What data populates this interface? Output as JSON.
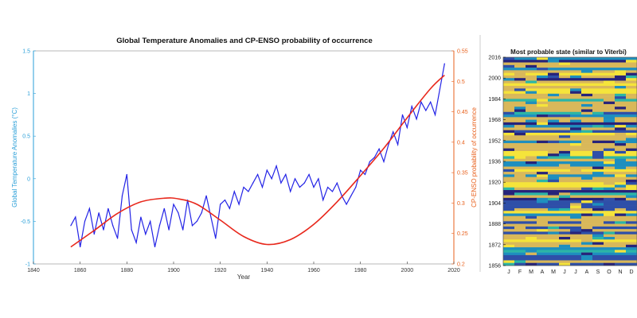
{
  "chart_data": [
    {
      "type": "line",
      "title": "Global Temperature Anomalies and CP-ENSO probability of occurrence",
      "xlabel": "Year",
      "ylabel": "Global Temperature Anomalies (°C)",
      "ylabel_right": "CP-ENSO probability of occurrence",
      "xlim": [
        1840,
        2020
      ],
      "xticks": [
        "1840",
        "1860",
        "1880",
        "1900",
        "1920",
        "1940",
        "1960",
        "1980",
        "2000",
        "2020"
      ],
      "ylim": [
        -1,
        1.5
      ],
      "yticks": [
        "-1",
        "-0.5",
        "0",
        "0.5",
        "1",
        "1.5"
      ],
      "ylim_right": [
        0.2,
        0.55
      ],
      "yticks_right": [
        "0.2",
        "0.25",
        "0.3",
        "0.35",
        "0.4",
        "0.45",
        "0.5",
        "0.55"
      ],
      "grid": false,
      "colors": {
        "temperature": "#2323e6",
        "probability": "#e8281c",
        "left_axis": "#2a9fd8",
        "right_axis": "#e8601c"
      },
      "series": [
        {
          "axis": "left",
          "x": [
            1856,
            1858,
            1860,
            1862,
            1864,
            1866,
            1868,
            1870,
            1872,
            1874,
            1876,
            1878,
            1880,
            1882,
            1884,
            1886,
            1888,
            1890,
            1892,
            1894,
            1896,
            1898,
            1900,
            1902,
            1904,
            1906,
            1908,
            1910,
            1912,
            1914,
            1916,
            1918,
            1920,
            1922,
            1924,
            1926,
            1928,
            1930,
            1932,
            1934,
            1936,
            1938,
            1940,
            1942,
            1944,
            1946,
            1948,
            1950,
            1952,
            1954,
            1956,
            1958,
            1960,
            1962,
            1964,
            1966,
            1968,
            1970,
            1972,
            1974,
            1976,
            1978,
            1980,
            1982,
            1984,
            1986,
            1988,
            1990,
            1992,
            1994,
            1996,
            1998,
            2000,
            2002,
            2004,
            2006,
            2008,
            2010,
            2012,
            2014,
            2016
          ],
          "values": [
            -0.55,
            -0.45,
            -0.8,
            -0.5,
            -0.35,
            -0.65,
            -0.4,
            -0.6,
            -0.35,
            -0.55,
            -0.7,
            -0.2,
            0.05,
            -0.6,
            -0.75,
            -0.45,
            -0.65,
            -0.5,
            -0.8,
            -0.55,
            -0.35,
            -0.6,
            -0.3,
            -0.4,
            -0.6,
            -0.25,
            -0.55,
            -0.5,
            -0.4,
            -0.2,
            -0.45,
            -0.7,
            -0.3,
            -0.25,
            -0.35,
            -0.15,
            -0.3,
            -0.1,
            -0.15,
            -0.05,
            0.05,
            -0.1,
            0.1,
            0.0,
            0.15,
            -0.05,
            0.05,
            -0.15,
            0.0,
            -0.1,
            -0.05,
            0.05,
            -0.1,
            0.0,
            -0.25,
            -0.1,
            -0.15,
            -0.05,
            -0.2,
            -0.3,
            -0.2,
            -0.1,
            0.1,
            0.05,
            0.2,
            0.25,
            0.35,
            0.2,
            0.4,
            0.55,
            0.4,
            0.75,
            0.6,
            0.85,
            0.7,
            0.9,
            0.8,
            0.9,
            0.75,
            1.05,
            1.35
          ]
        },
        {
          "axis": "right",
          "x": [
            1856,
            1866,
            1876,
            1886,
            1896,
            1902,
            1910,
            1920,
            1930,
            1940,
            1950,
            1960,
            1970,
            1980,
            1990,
            2000,
            2010,
            2016
          ],
          "values": [
            0.228,
            0.255,
            0.283,
            0.302,
            0.308,
            0.307,
            0.298,
            0.272,
            0.245,
            0.232,
            0.24,
            0.265,
            0.302,
            0.345,
            0.39,
            0.44,
            0.488,
            0.51
          ]
        }
      ]
    },
    {
      "type": "heatmap",
      "title": "Most probable state (similar to Viterbi)",
      "yticks": [
        "2016",
        "2000",
        "1984",
        "1968",
        "1952",
        "1936",
        "1920",
        "1904",
        "1888",
        "1872",
        "1856"
      ],
      "xticks": [
        "J",
        "F",
        "M",
        "A",
        "M",
        "J",
        "J",
        "A",
        "S",
        "O",
        "N",
        "D"
      ],
      "colormap": [
        "#27237a",
        "#2e4fa8",
        "#1e8fbe",
        "#2cb5a6",
        "#d9b85a",
        "#f5e43a"
      ]
    }
  ]
}
